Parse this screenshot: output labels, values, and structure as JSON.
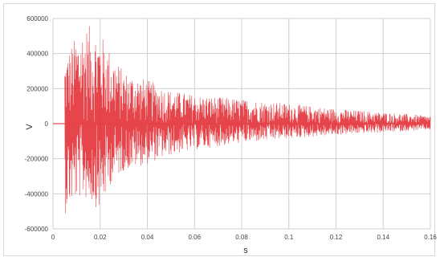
{
  "chart_data": {
    "type": "line",
    "title": "",
    "xlabel": "s",
    "ylabel": "V",
    "xlim": [
      0,
      0.16
    ],
    "ylim": [
      -600000,
      600000
    ],
    "grid": true,
    "legend": "none",
    "color": "#e0252b",
    "x_ticks": [
      0,
      0.02,
      0.04,
      0.06,
      0.08,
      0.1,
      0.12,
      0.14,
      0.16
    ],
    "x_tick_labels": [
      "0",
      "0.02",
      "0.04",
      "0.06",
      "0.08",
      "0.1",
      "0.12",
      "0.14",
      "0.16"
    ],
    "y_ticks": [
      600000,
      400000,
      200000,
      0,
      -200000,
      -400000,
      -600000
    ],
    "y_tick_labels": [
      "600000",
      "400000",
      "200000",
      "0",
      "-200000",
      "-400000",
      "-600000"
    ],
    "envelope": {
      "x": [
        0.005,
        0.008,
        0.012,
        0.016,
        0.02,
        0.025,
        0.03,
        0.04,
        0.05,
        0.06,
        0.08,
        0.1,
        0.12,
        0.14,
        0.16
      ],
      "upper": [
        380000,
        460000,
        550000,
        560000,
        520000,
        400000,
        300000,
        250000,
        190000,
        165000,
        140000,
        115000,
        85000,
        65000,
        45000
      ],
      "lower": [
        -520000,
        -460000,
        -420000,
        -450000,
        -500000,
        -330000,
        -270000,
        -230000,
        -180000,
        -150000,
        -110000,
        -85000,
        -65000,
        -50000,
        -35000
      ]
    },
    "signal_start": 0.005,
    "signal_end": 0.16
  }
}
